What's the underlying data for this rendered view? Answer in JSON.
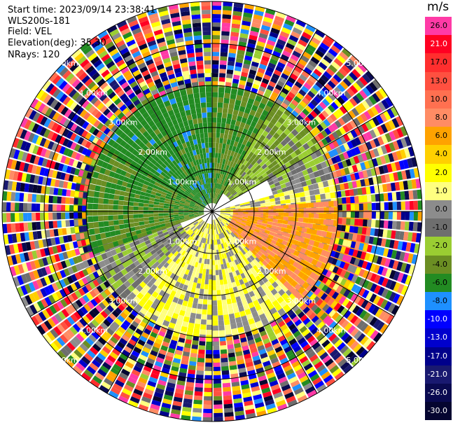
{
  "info": {
    "start_time": "Start time: 2023/09/14 23:38:41",
    "instrument": "WLS200s-181",
    "field": "Field: VEL",
    "elevation": "Elevation(deg): 35.30",
    "nrays": "NRays: 120"
  },
  "colorbar": {
    "unit": "m/s",
    "levels": [
      {
        "label": "26.0",
        "color": "#ff3aa6",
        "text": "#000000"
      },
      {
        "label": "21.0",
        "color": "#ff0022",
        "text": "#ffffff"
      },
      {
        "label": "17.0",
        "color": "#ff2e2e",
        "text": "#000000"
      },
      {
        "label": "13.0",
        "color": "#ff5040",
        "text": "#000000"
      },
      {
        "label": "10.0",
        "color": "#ff7050",
        "text": "#000000"
      },
      {
        "label": "8.0",
        "color": "#ff8c64",
        "text": "#000000"
      },
      {
        "label": "6.0",
        "color": "#ffa200",
        "text": "#000000"
      },
      {
        "label": "4.0",
        "color": "#ffd000",
        "text": "#000000"
      },
      {
        "label": "2.0",
        "color": "#ffff00",
        "text": "#000000"
      },
      {
        "label": "1.0",
        "color": "#ffff80",
        "text": "#000000"
      },
      {
        "label": "0.0",
        "color": "#8c8c8c",
        "text": "#000000"
      },
      {
        "label": "-1.0",
        "color": "#6e6e6e",
        "text": "#000000"
      },
      {
        "label": "-2.0",
        "color": "#9acd32",
        "text": "#000000"
      },
      {
        "label": "-4.0",
        "color": "#6b8e23",
        "text": "#000000"
      },
      {
        "label": "-6.0",
        "color": "#228b22",
        "text": "#000000"
      },
      {
        "label": "-8.0",
        "color": "#1e90ff",
        "text": "#000000"
      },
      {
        "label": "-10.0",
        "color": "#0000ff",
        "text": "#ffffff"
      },
      {
        "label": "-13.0",
        "color": "#0000cd",
        "text": "#ffffff"
      },
      {
        "label": "-17.0",
        "color": "#00008b",
        "text": "#ffffff"
      },
      {
        "label": "-21.0",
        "color": "#191970",
        "text": "#ffffff"
      },
      {
        "label": "-26.0",
        "color": "#0a0a50",
        "text": "#ffffff"
      },
      {
        "label": "-30.0",
        "color": "#050530",
        "text": "#ffffff"
      }
    ]
  },
  "chart_data": {
    "type": "heatmap",
    "projection": "polar PPI",
    "field": "VEL",
    "units": "m/s",
    "n_rays": 120,
    "range_rings_km": [
      1.0,
      2.0,
      3.0,
      4.0,
      5.0
    ],
    "ring_labels": [
      "1.00km",
      "2.00km",
      "3.00km",
      "4.00km",
      "5.00km"
    ],
    "max_range_km": 5.0,
    "spoke_angles_deg": [
      0,
      30,
      60,
      90,
      120,
      150,
      180,
      210,
      240,
      270,
      300,
      330
    ],
    "sectors": [
      {
        "from_deg": 300,
        "to_deg": 360,
        "range_km": [
          0.2,
          3.3
        ],
        "velocity": -5.0
      },
      {
        "from_deg": 0,
        "to_deg": 30,
        "range_km": [
          0.2,
          3.0
        ],
        "velocity": -4.0
      },
      {
        "from_deg": 30,
        "to_deg": 60,
        "range_km": [
          0.5,
          3.5
        ],
        "velocity": -2.0
      },
      {
        "from_deg": 60,
        "to_deg": 75,
        "range_km": [
          1.5,
          4.0
        ],
        "velocity": -0.5
      },
      {
        "from_deg": 75,
        "to_deg": 180,
        "range_km": [
          0.2,
          3.8
        ],
        "velocity": 1.5
      },
      {
        "from_deg": 85,
        "to_deg": 135,
        "range_km": [
          0.5,
          3.8
        ],
        "velocity": 8.0
      },
      {
        "from_deg": 180,
        "to_deg": 240,
        "range_km": [
          0.3,
          3.8
        ],
        "velocity": 1.5
      },
      {
        "from_deg": 225,
        "to_deg": 255,
        "range_km": [
          0.8,
          3.3
        ],
        "velocity": -0.5
      },
      {
        "from_deg": 250,
        "to_deg": 300,
        "range_km": [
          0.2,
          3.3
        ],
        "velocity": -4.0
      }
    ],
    "outer_band_km": [
      3.0,
      5.0
    ],
    "outer_band_note": "noisy mixed velocities"
  }
}
